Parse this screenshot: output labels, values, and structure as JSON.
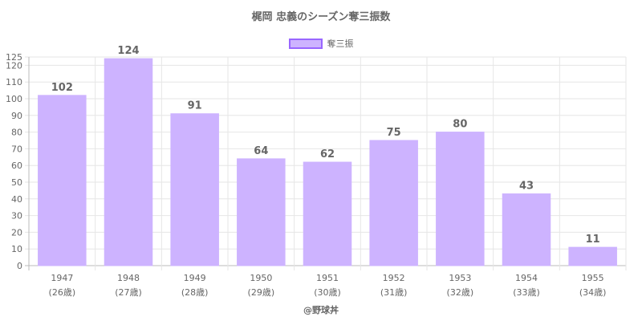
{
  "title": "梶岡 忠義のシーズン奪三振数",
  "legend_label": "奪三振",
  "credit": "@野球丼",
  "colors": {
    "bar_fill": "#cdb3ff",
    "bar_stroke": "#9966ff",
    "grid": "#e6e6e6",
    "axis": "#bbbbbb",
    "text": "#666666"
  },
  "chart_data": {
    "type": "bar",
    "categories": [
      "1947",
      "1948",
      "1949",
      "1950",
      "1951",
      "1952",
      "1953",
      "1954",
      "1955"
    ],
    "sublabels": [
      "(26歳)",
      "(27歳)",
      "(28歳)",
      "(29歳)",
      "(30歳)",
      "(31歳)",
      "(32歳)",
      "(33歳)",
      "(34歳)"
    ],
    "series": [
      {
        "name": "奪三振",
        "values": [
          102,
          124,
          91,
          64,
          62,
          75,
          80,
          43,
          11
        ]
      }
    ],
    "ylim": [
      0,
      125
    ],
    "yticks": [
      0,
      10,
      20,
      30,
      40,
      50,
      60,
      70,
      80,
      90,
      100,
      110,
      120,
      125
    ],
    "grid": true,
    "legend_position": "top",
    "data_labels": true
  }
}
